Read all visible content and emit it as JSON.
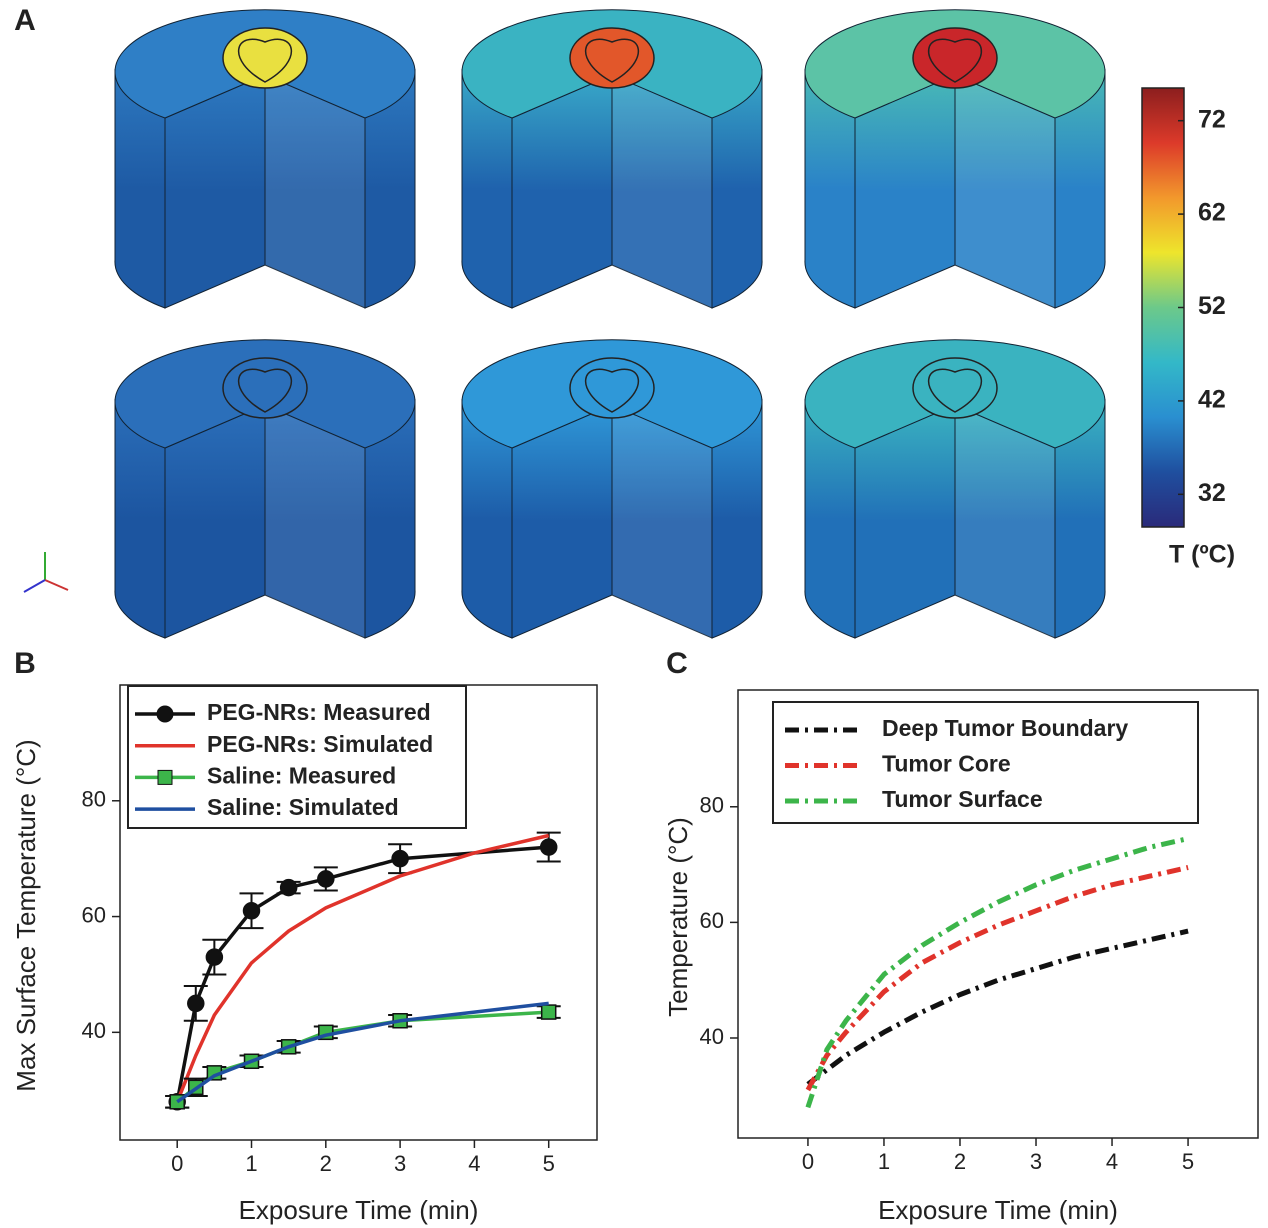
{
  "chart_data": [
    {
      "type": "colorbar",
      "label": "A",
      "title": "T (ºC)",
      "colors": [
        "#2a2a7a",
        "#1f4f9f",
        "#2a8fd0",
        "#33b8c8",
        "#6cc98a",
        "#eee52c",
        "#f2982c",
        "#dc3a2a",
        "#8c1e1e"
      ],
      "ylim": [
        28.5,
        75.5
      ],
      "yticks": [
        32,
        42,
        52,
        62,
        72
      ]
    },
    {
      "type": "line",
      "label": "B",
      "xlabel": "Exposure Time (min)",
      "ylabel": "Max Surface Temperature (°C)",
      "xlim": [
        -0.77,
        5.65
      ],
      "ylim": [
        21.4,
        100
      ],
      "xticks": [
        0,
        1,
        2,
        3,
        4,
        5
      ],
      "yticks": [
        40,
        60,
        80
      ],
      "legend": "upper-left",
      "series": [
        {
          "name": "PEG-NRs: Measured",
          "color": "#111111",
          "marker": "circle",
          "x": [
            0,
            0.25,
            0.5,
            1,
            1.5,
            2,
            3,
            5
          ],
          "values": [
            28,
            45,
            53,
            61,
            65,
            66.5,
            70,
            72
          ],
          "errors": [
            1,
            3,
            3,
            3,
            1,
            2,
            2.5,
            2.5
          ]
        },
        {
          "name": "PEG-NRs: Simulated",
          "color": "#e0332b",
          "x": [
            0,
            0.25,
            0.5,
            1,
            1.5,
            2,
            3,
            4,
            5
          ],
          "values": [
            28,
            36,
            43,
            52,
            57.5,
            61.5,
            67,
            71,
            74
          ]
        },
        {
          "name": "Saline: Measured",
          "color": "#3cb54a",
          "marker": "square",
          "x": [
            0,
            0.25,
            0.5,
            1,
            1.5,
            2,
            3,
            5
          ],
          "values": [
            28,
            30.5,
            33,
            35,
            37.5,
            40,
            42,
            43.5
          ],
          "errors": [
            1,
            1.5,
            1,
            1,
            1,
            1,
            1,
            1
          ]
        },
        {
          "name": "Saline: Simulated",
          "color": "#1f4fa0",
          "x": [
            0,
            0.5,
            1,
            1.5,
            2,
            3,
            4,
            5
          ],
          "values": [
            28,
            32.5,
            35,
            37.5,
            39.5,
            42,
            43.5,
            45
          ]
        }
      ]
    },
    {
      "type": "line",
      "label": "C",
      "xlabel": "Exposure Time (min)",
      "ylabel": "Temperature (°C)",
      "xlim": [
        -0.92,
        5.92
      ],
      "ylim": [
        22.7,
        100.2
      ],
      "xticks": [
        0,
        1,
        2,
        3,
        4,
        5
      ],
      "yticks": [
        40,
        60,
        80
      ],
      "legend": "upper-left",
      "dash": "dashdot",
      "series": [
        {
          "name": "Deep Tumor Boundary",
          "color": "#111111",
          "x": [
            0,
            0.25,
            0.5,
            1,
            1.5,
            2,
            2.5,
            3,
            3.5,
            4,
            4.5,
            5
          ],
          "values": [
            32,
            34.5,
            37,
            41,
            44.5,
            47.5,
            50,
            52,
            54,
            55.5,
            57,
            58.5
          ]
        },
        {
          "name": "Tumor Core",
          "color": "#e0332b",
          "x": [
            0,
            0.25,
            0.5,
            1,
            1.5,
            2,
            2.5,
            3,
            3.5,
            4,
            4.5,
            5
          ],
          "values": [
            31,
            37,
            41,
            48,
            53,
            56.5,
            59.5,
            62,
            64.5,
            66.5,
            68,
            69.5
          ]
        },
        {
          "name": "Tumor Surface",
          "color": "#3cb54a",
          "x": [
            0,
            0.25,
            0.5,
            1,
            1.5,
            2,
            2.5,
            3,
            3.5,
            4,
            4.5,
            5
          ],
          "values": [
            28,
            38,
            43,
            51,
            56,
            60,
            63.5,
            66.5,
            69,
            71,
            73,
            74.5
          ]
        }
      ]
    }
  ]
}
